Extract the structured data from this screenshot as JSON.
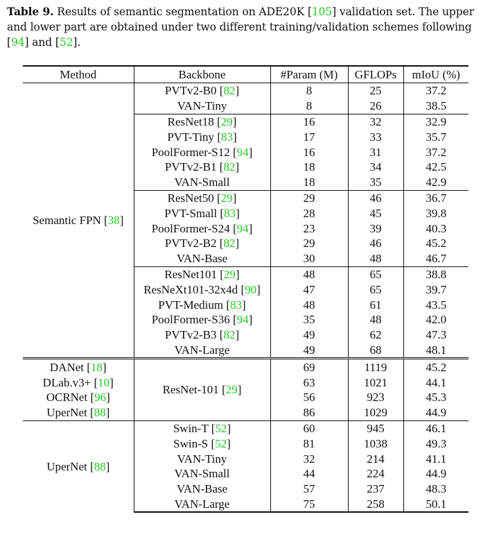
{
  "caption": {
    "label": "Table 9.",
    "text_1": " Results of semantic segmentation on ADE20K [",
    "ref_1": "105",
    "text_2": "] validation set. The upper and lower part are obtained under two different training/validation schemes following [",
    "ref_2": "94",
    "text_3": "] and [",
    "ref_3": "52",
    "text_4": "]."
  },
  "colors": {
    "citation": "#22c922",
    "text": "#111111"
  },
  "headers": {
    "method": "Method",
    "backbone": "Backbone",
    "params": "#Param (M)",
    "gflops": "GFLOPs",
    "miou": "mIoU (%)"
  },
  "upper": {
    "method": "Semantic FPN",
    "method_ref": "38",
    "groups": [
      {
        "rows": [
          {
            "backbone": "PVTv2-B0",
            "ref": "82",
            "params": "8",
            "gflops": "25",
            "miou": "37.2",
            "best": false
          },
          {
            "backbone": "VAN-Tiny",
            "ref": "",
            "params": "8",
            "gflops": "26",
            "miou": "38.5",
            "best": true
          }
        ]
      },
      {
        "rows": [
          {
            "backbone": "ResNet18",
            "ref": "29",
            "params": "16",
            "gflops": "32",
            "miou": "32.9",
            "best": false
          },
          {
            "backbone": "PVT-Tiny",
            "ref": "83",
            "params": "17",
            "gflops": "33",
            "miou": "35.7",
            "best": false
          },
          {
            "backbone": "PoolFormer-S12",
            "ref": "94",
            "params": "16",
            "gflops": "31",
            "miou": "37.2",
            "best": false
          },
          {
            "backbone": "PVTv2-B1",
            "ref": "82",
            "params": "18",
            "gflops": "34",
            "miou": "42.5",
            "best": false
          },
          {
            "backbone": "VAN-Small",
            "ref": "",
            "params": "18",
            "gflops": "35",
            "miou": "42.9",
            "best": true
          }
        ]
      },
      {
        "rows": [
          {
            "backbone": "ResNet50",
            "ref": "29",
            "params": "29",
            "gflops": "46",
            "miou": "36.7",
            "best": false
          },
          {
            "backbone": "PVT-Small",
            "ref": "83",
            "params": "28",
            "gflops": "45",
            "miou": "39.8",
            "best": false
          },
          {
            "backbone": "PoolFormer-S24",
            "ref": "94",
            "params": "23",
            "gflops": "39",
            "miou": "40.3",
            "best": false
          },
          {
            "backbone": "PVTv2-B2",
            "ref": "82",
            "params": "29",
            "gflops": "46",
            "miou": "45.2",
            "best": false
          },
          {
            "backbone": "VAN-Base",
            "ref": "",
            "params": "30",
            "gflops": "48",
            "miou": "46.7",
            "best": true
          }
        ]
      },
      {
        "rows": [
          {
            "backbone": "ResNet101",
            "ref": "29",
            "params": "48",
            "gflops": "65",
            "miou": "38.8",
            "best": false
          },
          {
            "backbone": "ResNeXt101-32x4d",
            "ref": "90",
            "params": "47",
            "gflops": "65",
            "miou": "39.7",
            "best": false
          },
          {
            "backbone": "PVT-Medium",
            "ref": "83",
            "params": "48",
            "gflops": "61",
            "miou": "43.5",
            "best": false
          },
          {
            "backbone": "PoolFormer-S36",
            "ref": "94",
            "params": "35",
            "gflops": "48",
            "miou": "42.0",
            "best": false
          },
          {
            "backbone": "PVTv2-B3",
            "ref": "82",
            "params": "49",
            "gflops": "62",
            "miou": "47.3",
            "best": false
          },
          {
            "backbone": "VAN-Large",
            "ref": "",
            "params": "49",
            "gflops": "68",
            "miou": "48.1",
            "best": true
          }
        ]
      }
    ]
  },
  "lower_a": {
    "backbone": "ResNet-101",
    "backbone_ref": "29",
    "rows": [
      {
        "method": "DANet",
        "ref": "18",
        "params": "69",
        "gflops": "1119",
        "miou": "45.2"
      },
      {
        "method": "DLab.v3+",
        "ref": "10",
        "params": "63",
        "gflops": "1021",
        "miou": "44.1"
      },
      {
        "method": "OCRNet",
        "ref": "96",
        "params": "56",
        "gflops": "923",
        "miou": "45.3"
      },
      {
        "method": "UperNet",
        "ref": "88",
        "params": "86",
        "gflops": "1029",
        "miou": "44.9"
      }
    ]
  },
  "lower_b": {
    "method": "UperNet",
    "method_ref": "88",
    "rows": [
      {
        "backbone": "Swin-T",
        "ref": "52",
        "params": "60",
        "gflops": "945",
        "miou": "46.1",
        "best": false
      },
      {
        "backbone": "Swin-S",
        "ref": "52",
        "params": "81",
        "gflops": "1038",
        "miou": "49.3",
        "best": false
      },
      {
        "backbone": "VAN-Tiny",
        "ref": "",
        "params": "32",
        "gflops": "214",
        "miou": "41.1",
        "best": false
      },
      {
        "backbone": "VAN-Small",
        "ref": "",
        "params": "44",
        "gflops": "224",
        "miou": "44.9",
        "best": false
      },
      {
        "backbone": "VAN-Base",
        "ref": "",
        "params": "57",
        "gflops": "237",
        "miou": "48.3",
        "best": false
      },
      {
        "backbone": "VAN-Large",
        "ref": "",
        "params": "75",
        "gflops": "258",
        "miou": "50.1",
        "best": true
      }
    ]
  }
}
